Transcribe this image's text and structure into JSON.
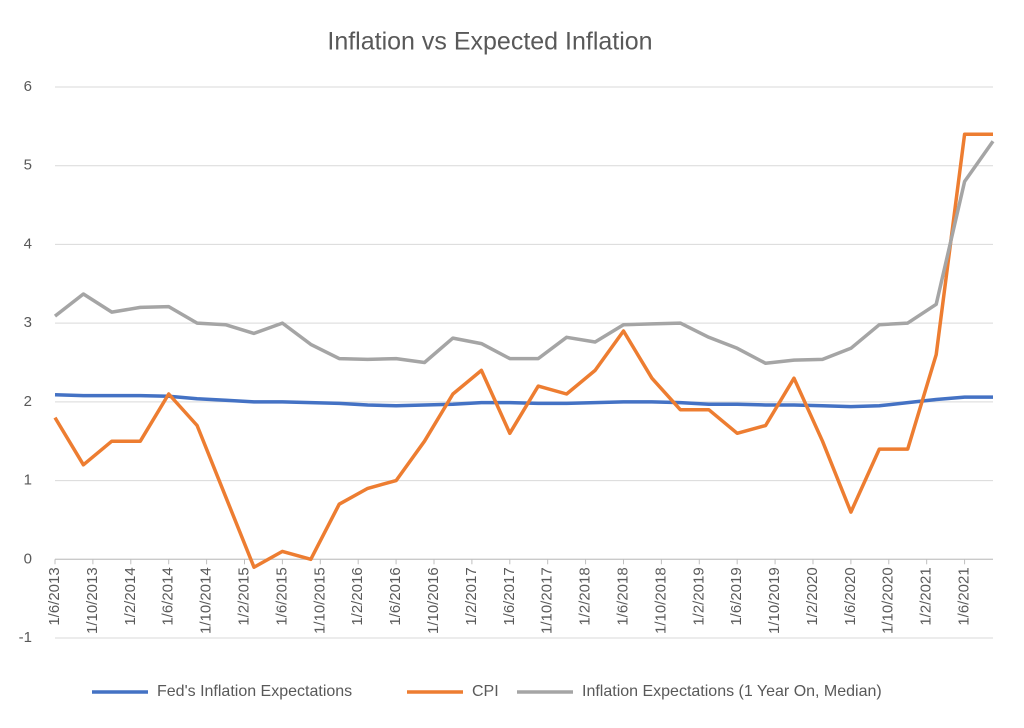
{
  "chart_data": {
    "type": "line",
    "title": "Inflation vs Expected Inflation",
    "x": [
      "1/6/2013",
      "1/9/2013",
      "1/12/2013",
      "1/3/2014",
      "1/6/2014",
      "1/9/2014",
      "1/12/2014",
      "1/3/2015",
      "1/6/2015",
      "1/9/2015",
      "1/12/2015",
      "1/3/2016",
      "1/6/2016",
      "1/9/2016",
      "1/12/2016",
      "1/3/2017",
      "1/6/2017",
      "1/9/2017",
      "1/12/2017",
      "1/3/2018",
      "1/6/2018",
      "1/9/2018",
      "1/12/2018",
      "1/3/2019",
      "1/6/2019",
      "1/9/2019",
      "1/12/2019",
      "1/3/2020",
      "1/6/2020",
      "1/9/2020",
      "1/12/2020",
      "1/3/2021",
      "1/6/2021",
      "1/9/2021"
    ],
    "series": [
      {
        "name": "Fed's Inflation Expectations",
        "color": "#4472c4",
        "values": [
          2.09,
          2.08,
          2.08,
          2.08,
          2.07,
          2.04,
          2.02,
          2.0,
          2.0,
          1.99,
          1.98,
          1.96,
          1.95,
          1.96,
          1.97,
          1.99,
          1.99,
          1.98,
          1.98,
          1.99,
          2.0,
          2.0,
          1.99,
          1.97,
          1.97,
          1.96,
          1.96,
          1.95,
          1.94,
          1.95,
          1.99,
          2.03,
          2.06,
          2.06
        ]
      },
      {
        "name": "CPI",
        "color": "#ed7d31",
        "values": [
          1.8,
          1.2,
          1.5,
          1.5,
          2.1,
          1.7,
          0.8,
          -0.1,
          0.1,
          0.0,
          0.7,
          0.9,
          1.0,
          1.5,
          2.1,
          2.4,
          1.6,
          2.2,
          2.1,
          2.4,
          2.9,
          2.3,
          1.9,
          1.9,
          1.6,
          1.7,
          2.3,
          1.5,
          0.6,
          1.4,
          1.4,
          2.6,
          5.4,
          5.4
        ]
      },
      {
        "name": "Inflation Expectations (1 Year On, Median)",
        "color": "#a5a5a5",
        "values": [
          3.09,
          3.37,
          3.14,
          3.2,
          3.21,
          3.0,
          2.98,
          2.87,
          3.0,
          2.73,
          2.55,
          2.54,
          2.55,
          2.5,
          2.81,
          2.74,
          2.55,
          2.55,
          2.82,
          2.76,
          2.98,
          2.99,
          3.0,
          2.82,
          2.68,
          2.49,
          2.53,
          2.54,
          2.68,
          2.98,
          3.0,
          3.24,
          4.8,
          5.31
        ]
      }
    ],
    "xlim": [
      "1/6/2013",
      "1/9/2021"
    ],
    "xticks": [
      "1/6/2013",
      "1/10/2013",
      "1/2/2014",
      "1/6/2014",
      "1/10/2014",
      "1/2/2015",
      "1/6/2015",
      "1/10/2015",
      "1/2/2016",
      "1/6/2016",
      "1/10/2016",
      "1/2/2017",
      "1/6/2017",
      "1/10/2017",
      "1/2/2018",
      "1/6/2018",
      "1/10/2018",
      "1/2/2019",
      "1/6/2019",
      "1/10/2019",
      "1/2/2020",
      "1/6/2020",
      "1/10/2020",
      "1/2/2021",
      "1/6/2021"
    ],
    "ylim": [
      -1,
      6
    ],
    "yticks": [
      -1,
      0,
      1,
      2,
      3,
      4,
      5,
      6
    ],
    "grid": true,
    "legend": "bottom"
  }
}
